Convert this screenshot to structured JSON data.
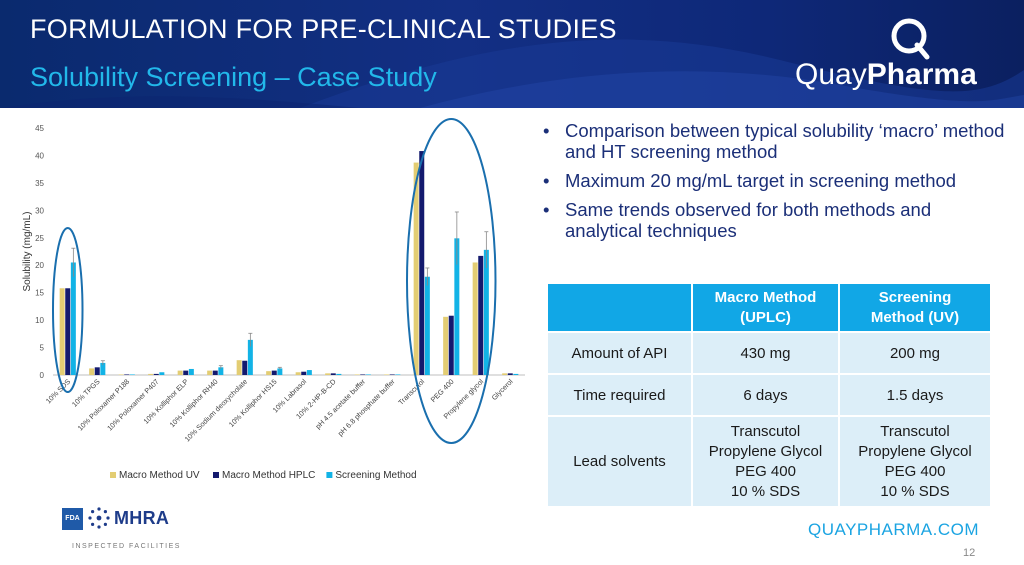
{
  "header": {
    "title": "FORMULATION FOR PRE-CLINICAL STUDIES",
    "subtitle": "Solubility Screening – Case Study",
    "logo_regular": "Quay",
    "logo_bold": "Pharma"
  },
  "bullets": [
    "Comparison between typical solubility ‘macro’ method and HT screening method",
    "Maximum 20 mg/mL target in screening method",
    "Same trends observed for both methods and analytical techniques"
  ],
  "table": {
    "headers": [
      "",
      "Macro Method (UPLC)",
      "Screening Method (UV)"
    ],
    "rows": [
      {
        "label": "Amount of API",
        "macro": [
          "430 mg"
        ],
        "screening": [
          "200 mg"
        ]
      },
      {
        "label": "Time required",
        "macro": [
          "6 days"
        ],
        "screening": [
          "1.5 days"
        ]
      },
      {
        "label": "Lead solvents",
        "macro": [
          "Transcutol",
          "Propylene Glycol",
          "PEG 400",
          "10 % SDS"
        ],
        "screening": [
          "Transcutol",
          "Propylene Glycol",
          "PEG 400",
          "10 % SDS"
        ]
      }
    ]
  },
  "footer": {
    "url": "QUAYPHARMA.COM",
    "page": "12",
    "fda": "FDA",
    "mhra": "MHRA",
    "inspected": "INSPECTED FACILITIES"
  },
  "colors": {
    "header_bg": "#132f84",
    "accent": "#22b8ea",
    "macro_uv": "#e3cd73",
    "macro_hplc": "#141a6e",
    "screening": "#12b3e6",
    "table_header": "#11a7e6",
    "table_cell": "#dceef8",
    "ellipse": "#1a6fae"
  },
  "chart_data": {
    "type": "bar",
    "ylabel": "Solubility (mg/mL)",
    "xlabel": "",
    "ylim": [
      0,
      45
    ],
    "yticks": [
      0,
      5,
      10,
      15,
      20,
      25,
      30,
      35,
      40,
      45
    ],
    "grid": false,
    "legend_position": "bottom",
    "categories": [
      "10% SDS",
      "10% TPGS",
      "10% Poloxamer P188",
      "10% Poloxamer P407",
      "10% Kolliphor ELP",
      "10% Kolliphor RH40",
      "10% Sodium deoxycholate",
      "10% Kolliphor HS15",
      "10% Labrasol",
      "10% 2-HP-B-CD",
      "pH 4.5 acetate buffer",
      "pH 6.8 phosphate buffer",
      "Transcutol",
      "PEG 400",
      "Propylene glycol",
      "Glycerol"
    ],
    "series": [
      {
        "name": "Macro Method UV",
        "values": [
          15.8,
          1.2,
          0.1,
          0.2,
          0.8,
          0.8,
          2.7,
          0.7,
          0.5,
          0.3,
          0.1,
          0.1,
          38.7,
          10.6,
          20.5,
          0.3
        ]
      },
      {
        "name": "Macro Method HPLC",
        "values": [
          15.8,
          1.4,
          0.1,
          0.2,
          0.8,
          0.8,
          2.6,
          0.8,
          0.6,
          0.3,
          0.1,
          0.1,
          40.8,
          10.8,
          21.7,
          0.3
        ]
      },
      {
        "name": "Screening Method",
        "values": [
          20.5,
          2.2,
          0.1,
          0.5,
          1.1,
          1.4,
          6.4,
          1.2,
          0.9,
          0.2,
          0.1,
          0.1,
          17.9,
          24.9,
          22.8,
          0.2
        ]
      }
    ],
    "error_bars": {
      "Screening Method": [
        2.6,
        0.4,
        0,
        0,
        0,
        0.3,
        1.2,
        0.2,
        0,
        0,
        0,
        0,
        1.6,
        4.8,
        3.3,
        0
      ]
    },
    "annotations": [
      "ellipse around 10% SDS",
      "ellipse around Transcutol, PEG 400, Propylene glycol"
    ]
  }
}
